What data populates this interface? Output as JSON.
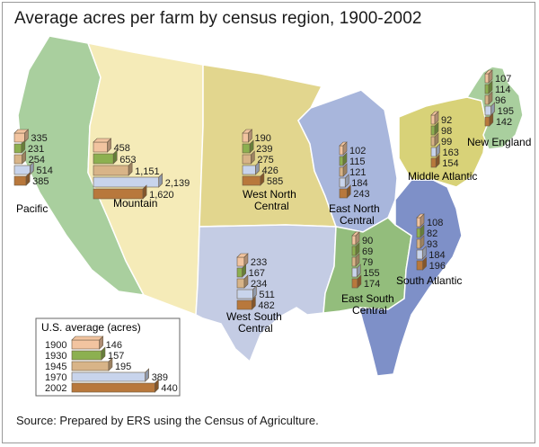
{
  "title": "Average acres per farm by census region, 1900-2002",
  "source": "Source: Prepared by ERS using the Census of Agriculture.",
  "years": [
    "1900",
    "1930",
    "1945",
    "1970",
    "2002"
  ],
  "colors": {
    "1900": "#f2c4a0",
    "1930": "#8cb050",
    "1945": "#d8b488",
    "1970": "#c8d4ec",
    "2002": "#b8783c"
  },
  "region_colors": {
    "pacific": "#a9cf9e",
    "mountain": "#f5ebb8",
    "west_north_central": "#e2d68e",
    "west_south_central": "#c4cce4",
    "east_north_central": "#a8b6dc",
    "east_south_central": "#93bd7c",
    "south_atlantic": "#7e90c8",
    "middle_atlantic": "#d8d278",
    "new_england": "#a9cf9e"
  },
  "legend": {
    "title": "U.S. average (acres)",
    "values": [
      146,
      157,
      195,
      389,
      440
    ]
  },
  "regions": {
    "pacific": {
      "name": "Pacific",
      "values": [
        335,
        231,
        254,
        514,
        385
      ]
    },
    "mountain": {
      "name": "Mountain",
      "values": [
        "458",
        "653",
        "1,151",
        "2,139",
        "1,620"
      ]
    },
    "west_north_central": {
      "name_line1": "West North",
      "name_line2": "Central",
      "values": [
        190,
        239,
        275,
        426,
        585
      ]
    },
    "west_south_central": {
      "name_line1": "West South",
      "name_line2": "Central",
      "values": [
        233,
        167,
        234,
        511,
        482
      ]
    },
    "east_north_central": {
      "name_line1": "East North",
      "name_line2": "Central",
      "values": [
        102,
        115,
        121,
        184,
        243
      ]
    },
    "east_south_central": {
      "name_line1": "East South",
      "name_line2": "Central",
      "values": [
        90,
        69,
        79,
        155,
        174
      ]
    },
    "south_atlantic": {
      "name": "South Atlantic",
      "values": [
        108,
        82,
        93,
        184,
        196
      ]
    },
    "middle_atlantic": {
      "name": "Middle Atlantic",
      "values": [
        92,
        98,
        99,
        163,
        154
      ]
    },
    "new_england": {
      "name": "New England",
      "values": [
        107,
        114,
        96,
        195,
        142
      ]
    }
  }
}
